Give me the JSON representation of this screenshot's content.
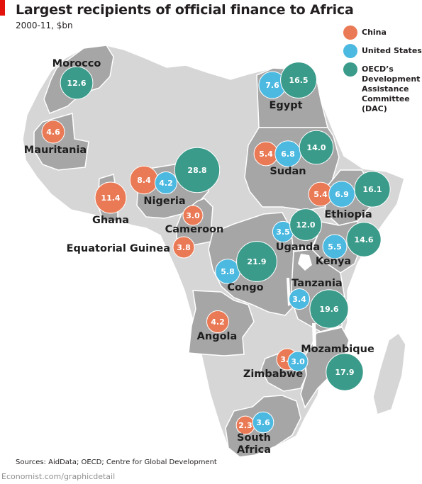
{
  "header": {
    "title": "Largest recipients of official finance to Africa",
    "subtitle": "2000-11, $bn"
  },
  "colors": {
    "china": "#ea7a56",
    "us": "#4cb9e1",
    "dac": "#3a9b8a",
    "land_dark": "#a6a6a6",
    "land_light": "#d6d6d6",
    "brand": "#e3120b"
  },
  "legend": {
    "china": "China",
    "us": "United States",
    "dac": "OECD’s\nDevelopment\nAssistance\nCommittee\n(DAC)"
  },
  "countries": [
    {
      "name": "Morocco"
    },
    {
      "name": "Mauritania"
    },
    {
      "name": "Egypt"
    },
    {
      "name": "Sudan"
    },
    {
      "name": "Nigeria"
    },
    {
      "name": "Ghana"
    },
    {
      "name": "Cameroon"
    },
    {
      "name": "Equatorial Guinea"
    },
    {
      "name": "Ethiopia"
    },
    {
      "name": "Uganda"
    },
    {
      "name": "Kenya"
    },
    {
      "name": "Congo"
    },
    {
      "name": "Tanzania"
    },
    {
      "name": "Angola"
    },
    {
      "name": "Mozambique"
    },
    {
      "name": "Zimbabwe"
    },
    {
      "name": "South\nAfrica"
    }
  ],
  "bubbles": [
    {
      "donor": "dac",
      "value": "12.6"
    },
    {
      "donor": "china",
      "value": "4.6"
    },
    {
      "donor": "us",
      "value": "7.6"
    },
    {
      "donor": "dac",
      "value": "16.5"
    },
    {
      "donor": "china",
      "value": "5.4"
    },
    {
      "donor": "us",
      "value": "6.8"
    },
    {
      "donor": "dac",
      "value": "14.0"
    },
    {
      "donor": "china",
      "value": "8.4"
    },
    {
      "donor": "us",
      "value": "4.2"
    },
    {
      "donor": "dac",
      "value": "28.8"
    },
    {
      "donor": "china",
      "value": "11.4"
    },
    {
      "donor": "china",
      "value": "3.0"
    },
    {
      "donor": "china",
      "value": "3.8"
    },
    {
      "donor": "china",
      "value": "5.4"
    },
    {
      "donor": "us",
      "value": "6.9"
    },
    {
      "donor": "dac",
      "value": "16.1"
    },
    {
      "donor": "us",
      "value": "3.5"
    },
    {
      "donor": "dac",
      "value": "12.0"
    },
    {
      "donor": "us",
      "value": "5.5"
    },
    {
      "donor": "dac",
      "value": "14.6"
    },
    {
      "donor": "us",
      "value": "5.8"
    },
    {
      "donor": "dac",
      "value": "21.9"
    },
    {
      "donor": "us",
      "value": "3.4"
    },
    {
      "donor": "dac",
      "value": "19.6"
    },
    {
      "donor": "china",
      "value": "4.2"
    },
    {
      "donor": "china",
      "value": "3.8"
    },
    {
      "donor": "us",
      "value": "3.0"
    },
    {
      "donor": "dac",
      "value": "17.9"
    },
    {
      "donor": "china",
      "value": "2.3"
    },
    {
      "donor": "us",
      "value": "3.6"
    }
  ],
  "source": "Sources: AidData; OECD; Centre for Global Development",
  "footer": "Economist.com/graphicdetail"
}
